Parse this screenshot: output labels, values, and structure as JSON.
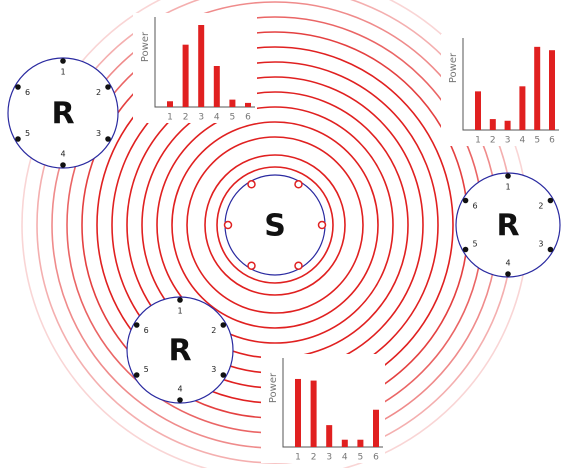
{
  "source": {
    "label": "S"
  },
  "receivers": [
    {
      "label": "R",
      "mics": [
        "1",
        "2",
        "3",
        "4",
        "5",
        "6"
      ]
    },
    {
      "label": "R",
      "mics": [
        "1",
        "2",
        "3",
        "4",
        "5",
        "6"
      ]
    },
    {
      "label": "R",
      "mics": [
        "1",
        "2",
        "3",
        "4",
        "5",
        "6"
      ]
    }
  ],
  "chart_data": [
    {
      "type": "bar",
      "y_label": "Power",
      "categories": [
        "1",
        "2",
        "3",
        "4",
        "5",
        "6"
      ],
      "values": [
        0.7,
        7.6,
        10,
        5,
        0.9,
        0.5
      ],
      "color": "#e02020",
      "ylim": [
        0,
        10
      ]
    },
    {
      "type": "bar",
      "y_label": "Power",
      "categories": [
        "1",
        "2",
        "3",
        "4",
        "5",
        "6"
      ],
      "values": [
        4.6,
        1.3,
        1.1,
        5.2,
        9.9,
        9.5
      ],
      "color": "#e02020",
      "ylim": [
        0,
        10
      ]
    },
    {
      "type": "bar",
      "y_label": "Power",
      "categories": [
        "1",
        "2",
        "3",
        "4",
        "5",
        "6"
      ],
      "values": [
        8.4,
        8.2,
        2.7,
        0.9,
        0.9,
        4.6
      ],
      "color": "#e02020",
      "ylim": [
        0,
        10
      ]
    }
  ]
}
